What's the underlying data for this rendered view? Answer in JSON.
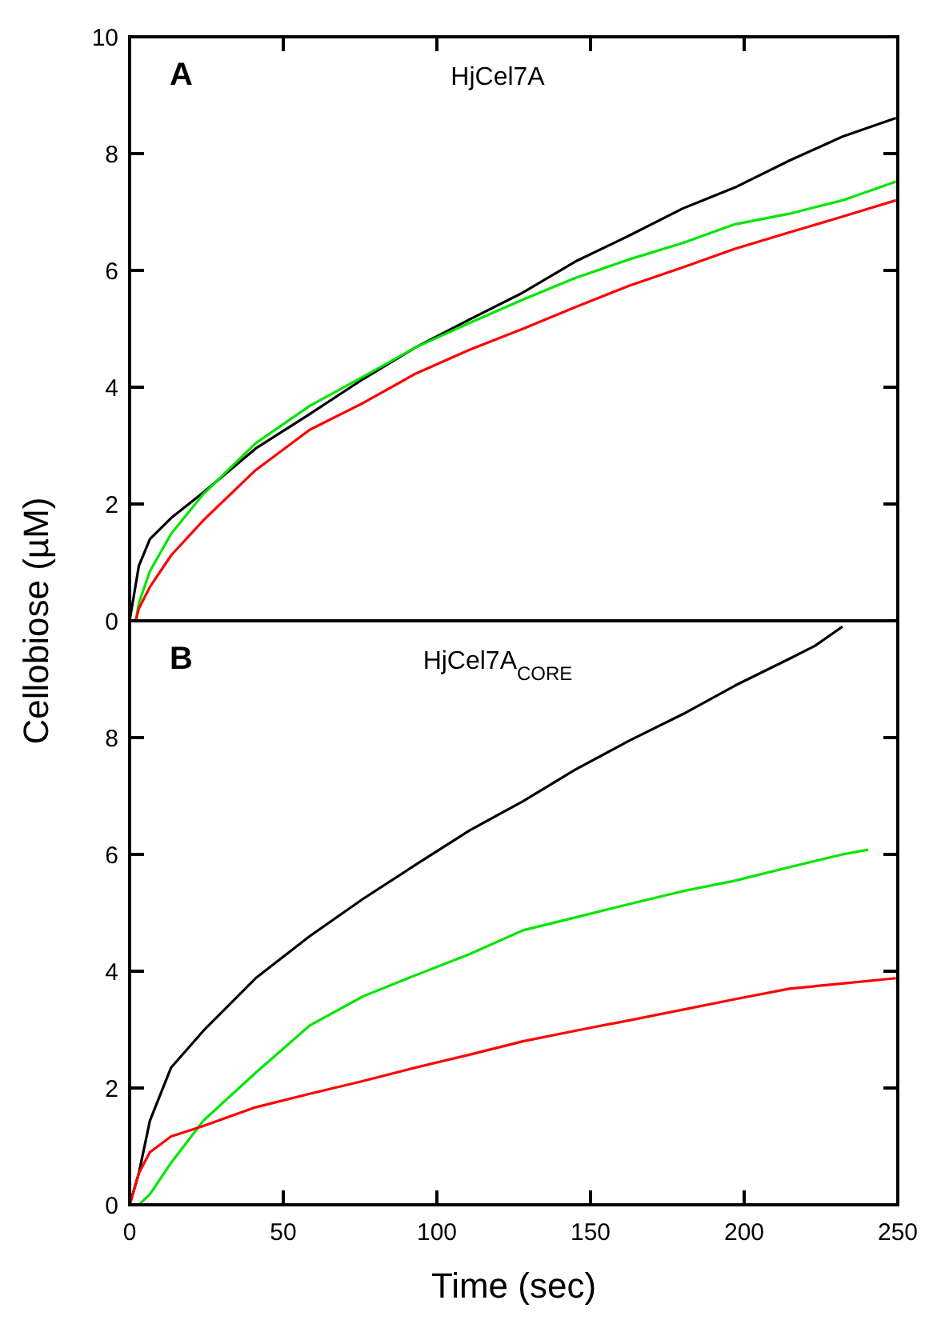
{
  "chart_data": [
    {
      "type": "line",
      "title": "HjCel7A",
      "ylabel": "Cellobiose (µM)",
      "annotations": [
        "A"
      ],
      "xlim": [
        0,
        250
      ],
      "xticks": [
        {
          "value": 50,
          "label": null
        },
        {
          "value": 100,
          "label": null
        },
        {
          "value": 150,
          "label": null
        },
        {
          "value": 200,
          "label": null
        }
      ],
      "ylim": [
        0,
        10
      ],
      "yticks": [
        0,
        2,
        4,
        6,
        8,
        10
      ],
      "tick_labels": "y",
      "grid": false,
      "line_style": "solid",
      "marker": "none",
      "series": [
        {
          "color": "#000000",
          "x": [
            0,
            3,
            6.6,
            13.5,
            24,
            41,
            58.6,
            76,
            93,
            110.6,
            128,
            145,
            162.7,
            180,
            197,
            214.7,
            232,
            249.4
          ],
          "values": [
            0,
            0.94,
            1.4,
            1.76,
            2.2,
            2.95,
            3.54,
            4.14,
            4.68,
            5.16,
            5.62,
            6.15,
            6.6,
            7.06,
            7.42,
            7.88,
            8.29,
            8.61
          ]
        },
        {
          "color": "#00e600",
          "x": [
            2,
            3,
            6.6,
            13.5,
            24,
            41,
            58.6,
            76,
            93,
            110.6,
            128,
            145,
            162.7,
            180,
            197,
            214.7,
            232,
            249.4
          ],
          "values": [
            0,
            0.3,
            0.85,
            1.49,
            2.17,
            3.04,
            3.68,
            4.18,
            4.68,
            5.1,
            5.5,
            5.87,
            6.19,
            6.47,
            6.79,
            6.97,
            7.2,
            7.52
          ]
        },
        {
          "color": "#ff0000",
          "x": [
            2,
            3,
            6.6,
            13.5,
            24,
            41,
            58.6,
            76,
            93,
            110.6,
            128,
            145,
            162.7,
            180,
            197,
            214.7,
            232,
            249.4
          ],
          "values": [
            0,
            0.21,
            0.58,
            1.12,
            1.72,
            2.58,
            3.27,
            3.73,
            4.23,
            4.64,
            5.0,
            5.37,
            5.74,
            6.05,
            6.37,
            6.65,
            6.92,
            7.2
          ]
        }
      ]
    },
    {
      "type": "line",
      "title": "HjCel7A$_{CORE}$",
      "xlabel": "Time (sec)",
      "annotations": [
        "B"
      ],
      "xlim": [
        0,
        250
      ],
      "xticks": [
        0,
        50,
        100,
        150,
        200,
        250
      ],
      "ylim": [
        0,
        10
      ],
      "yticks": [
        0,
        2,
        4,
        6,
        8,
        {
          "value": 10,
          "label": null
        }
      ],
      "grid": false,
      "line_style": "solid",
      "marker": "none",
      "series": [
        {
          "color": "#000000",
          "x": [
            0,
            3,
            6.6,
            13.5,
            24,
            41,
            58.6,
            76,
            93,
            110.6,
            128,
            145,
            162.7,
            180,
            197,
            214.7,
            223,
            232
          ],
          "values": [
            0,
            0.54,
            1.44,
            2.35,
            2.98,
            3.88,
            4.6,
            5.24,
            5.82,
            6.41,
            6.91,
            7.45,
            7.95,
            8.4,
            8.89,
            9.35,
            9.57,
            9.9
          ]
        },
        {
          "color": "#00e600",
          "x": [
            3,
            6.6,
            13.5,
            24,
            41,
            58.6,
            76,
            93,
            110.6,
            128,
            145,
            162.7,
            180,
            197,
            214.7,
            232,
            240.4
          ],
          "values": [
            0,
            0.18,
            0.72,
            1.44,
            2.26,
            3.07,
            3.57,
            3.93,
            4.29,
            4.7,
            4.92,
            5.15,
            5.37,
            5.55,
            5.78,
            6.0,
            6.08
          ]
        },
        {
          "color": "#ff0000",
          "x": [
            0,
            3,
            6.6,
            13.5,
            24,
            41,
            58.6,
            76,
            93,
            110.6,
            128,
            145,
            162.7,
            180,
            197,
            214.7,
            232,
            249.4
          ],
          "values": [
            0,
            0.54,
            0.9,
            1.17,
            1.35,
            1.67,
            1.9,
            2.12,
            2.35,
            2.57,
            2.8,
            2.98,
            3.16,
            3.34,
            3.52,
            3.7,
            3.79,
            3.88
          ]
        }
      ]
    }
  ]
}
